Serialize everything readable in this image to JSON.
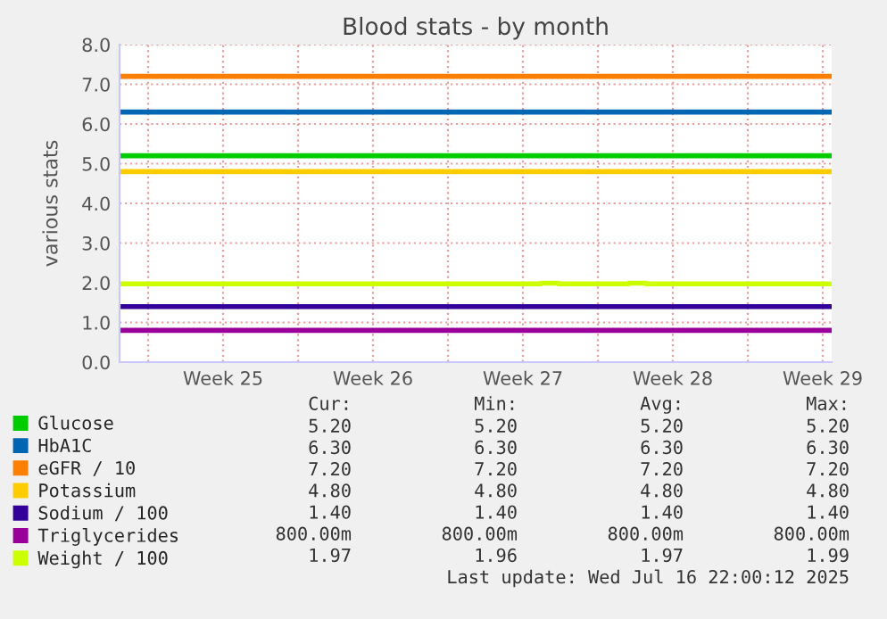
{
  "chart_data": {
    "type": "line",
    "title": "Blood stats - by month",
    "ylabel": "various stats",
    "x": [
      "2025-06-13T16:00",
      "2025-07-16T22:00"
    ],
    "series": [
      {
        "name": "Glucose",
        "color": "#00cc00",
        "values": [
          5.2,
          5.2
        ]
      },
      {
        "name": "HbA1C",
        "color": "#0066b3",
        "values": [
          6.3,
          6.3
        ]
      },
      {
        "name": "eGFR / 10",
        "color": "#ff8000",
        "values": [
          7.2,
          7.2
        ]
      },
      {
        "name": "Potassium",
        "color": "#ffcc00",
        "values": [
          4.8,
          4.8
        ]
      },
      {
        "name": "Sodium / 100",
        "color": "#330099",
        "values": [
          1.4,
          1.4
        ]
      },
      {
        "name": "Triglycerides",
        "color": "#990099",
        "values": [
          0.8,
          0.8
        ]
      },
      {
        "name": "Weight / 100",
        "color": "#ccff00",
        "x": [
          "2025-06-13T16:00",
          "2025-07-03T08:00",
          "2025-07-03T08:00",
          "2025-07-04T04:00",
          "2025-07-04T04:00",
          "2025-07-07T10:00",
          "2025-07-07T10:00",
          "2025-07-08T06:00",
          "2025-07-08T06:00",
          "2025-07-16T22:00"
        ],
        "values": [
          1.97,
          1.97,
          1.99,
          1.99,
          1.97,
          1.97,
          1.99,
          1.99,
          1.97,
          1.97
        ]
      }
    ],
    "xlim": [
      "2025-06-13T16:00",
      "2025-07-16T22:00"
    ],
    "xticks": [
      {
        "value": "2025-06-15",
        "label": null
      },
      {
        "value": "2025-06-18T12:00",
        "label": "Week 25"
      },
      {
        "value": "2025-06-22",
        "label": null
      },
      {
        "value": "2025-06-25T12:00",
        "label": "Week 26"
      },
      {
        "value": "2025-06-29",
        "label": null
      },
      {
        "value": "2025-07-02T12:00",
        "label": "Week 27"
      },
      {
        "value": "2025-07-06",
        "label": null
      },
      {
        "value": "2025-07-09T12:00",
        "label": "Week 28"
      },
      {
        "value": "2025-07-13",
        "label": null
      },
      {
        "value": "2025-07-16T12:00",
        "label": "Week 29"
      }
    ],
    "ylim": [
      0,
      8
    ],
    "yticks": [
      {
        "value": 0,
        "label": "0.0"
      },
      {
        "value": 1,
        "label": "1.0"
      },
      {
        "value": 2,
        "label": "2.0"
      },
      {
        "value": 3,
        "label": "3.0"
      },
      {
        "value": 4,
        "label": "4.0"
      },
      {
        "value": 5,
        "label": "5.0"
      },
      {
        "value": 6,
        "label": "6.0"
      },
      {
        "value": 7,
        "label": "7.0"
      },
      {
        "value": 8,
        "label": "8.0"
      }
    ],
    "grid": true,
    "legend": "bottom",
    "marker": "none",
    "line_style": "solid",
    "annotations": [
      "Cur:",
      "Min:",
      "Avg:",
      "Max:",
      "5.20",
      "5.20",
      "5.20",
      "5.20",
      "6.30",
      "6.30",
      "6.30",
      "6.30",
      "7.20",
      "7.20",
      "7.20",
      "7.20",
      "4.80",
      "4.80",
      "4.80",
      "4.80",
      "1.40",
      "1.40",
      "1.40",
      "1.40",
      "800.00m",
      "800.00m",
      "800.00m",
      "800.00m",
      "1.97",
      "1.96",
      "1.97",
      "1.99",
      "Last update: Wed Jul 16 22:00:12 2025"
    ]
  }
}
